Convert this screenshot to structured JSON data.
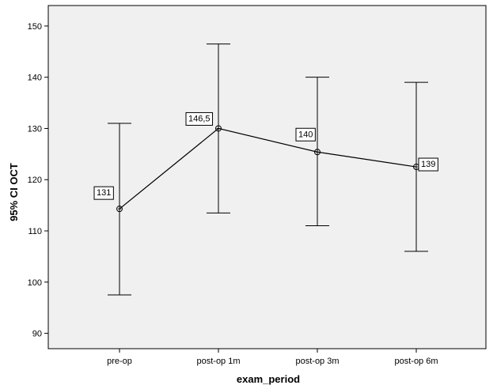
{
  "chart_data": {
    "type": "line",
    "xlabel": "exam_period",
    "ylabel": "95% CI OCT",
    "categories": [
      "pre-op",
      "post-op 1m",
      "post-op 3m",
      "post-op 6m"
    ],
    "ylim": [
      87,
      154
    ],
    "yticks": [
      90,
      100,
      110,
      120,
      130,
      140,
      150
    ],
    "grid": false,
    "series": [
      {
        "values": [
          114.3,
          130.0,
          125.4,
          122.5
        ],
        "ci_lower": [
          97.5,
          113.5,
          111.0,
          106.0
        ],
        "ci_upper": [
          131.0,
          146.5,
          140.0,
          139.0
        ],
        "point_labels": [
          "131",
          "146,5",
          "140",
          "139"
        ]
      }
    ],
    "colors": {
      "plot_background": "#f0f0f0",
      "line": "#000000"
    }
  }
}
